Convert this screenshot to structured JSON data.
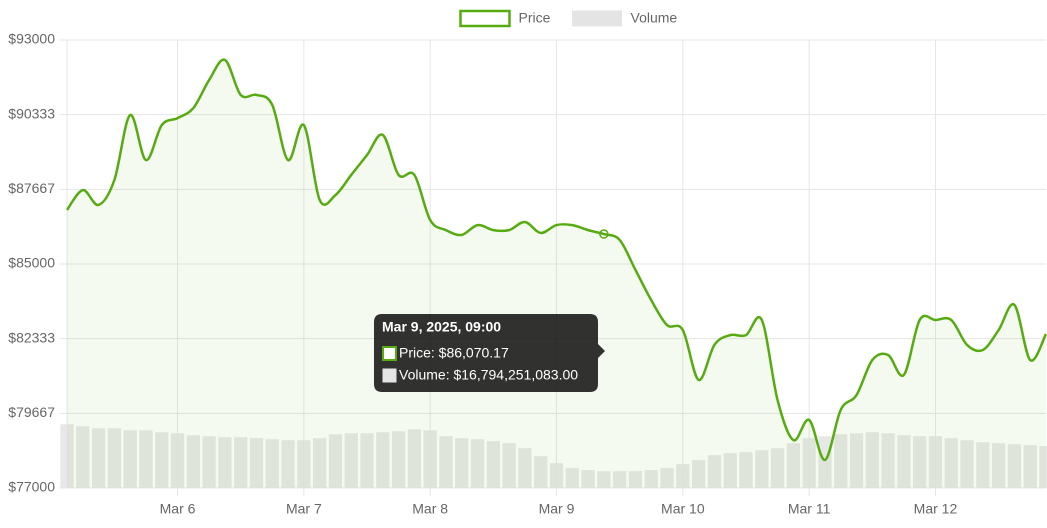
{
  "chart_data": {
    "type": "line",
    "legend": "top",
    "grid": true,
    "x": [
      "Mar 5, 2025, 03:00",
      "Mar 5, 2025, 06:00",
      "Mar 5, 2025, 09:00",
      "Mar 5, 2025, 12:00",
      "Mar 5, 2025, 15:00",
      "Mar 5, 2025, 18:00",
      "Mar 5, 2025, 21:00",
      "Mar 6, 2025, 00:00",
      "Mar 6, 2025, 03:00",
      "Mar 6, 2025, 06:00",
      "Mar 6, 2025, 09:00",
      "Mar 6, 2025, 12:00",
      "Mar 6, 2025, 15:00",
      "Mar 6, 2025, 18:00",
      "Mar 6, 2025, 21:00",
      "Mar 7, 2025, 00:00",
      "Mar 7, 2025, 03:00",
      "Mar 7, 2025, 06:00",
      "Mar 7, 2025, 09:00",
      "Mar 7, 2025, 12:00",
      "Mar 7, 2025, 15:00",
      "Mar 7, 2025, 18:00",
      "Mar 7, 2025, 21:00",
      "Mar 8, 2025, 00:00",
      "Mar 8, 2025, 03:00",
      "Mar 8, 2025, 06:00",
      "Mar 8, 2025, 09:00",
      "Mar 8, 2025, 12:00",
      "Mar 8, 2025, 15:00",
      "Mar 8, 2025, 18:00",
      "Mar 8, 2025, 21:00",
      "Mar 9, 2025, 00:00",
      "Mar 9, 2025, 03:00",
      "Mar 9, 2025, 06:00",
      "Mar 9, 2025, 09:00",
      "Mar 9, 2025, 12:00",
      "Mar 9, 2025, 15:00",
      "Mar 9, 2025, 18:00",
      "Mar 9, 2025, 21:00",
      "Mar 10, 2025, 00:00",
      "Mar 10, 2025, 03:00",
      "Mar 10, 2025, 06:00",
      "Mar 10, 2025, 09:00",
      "Mar 10, 2025, 12:00",
      "Mar 10, 2025, 15:00",
      "Mar 10, 2025, 18:00",
      "Mar 10, 2025, 21:00",
      "Mar 11, 2025, 00:00",
      "Mar 11, 2025, 03:00",
      "Mar 11, 2025, 06:00",
      "Mar 11, 2025, 09:00",
      "Mar 11, 2025, 12:00",
      "Mar 11, 2025, 15:00",
      "Mar 11, 2025, 18:00",
      "Mar 11, 2025, 21:00",
      "Mar 12, 2025, 00:00",
      "Mar 12, 2025, 03:00",
      "Mar 12, 2025, 06:00",
      "Mar 12, 2025, 09:00",
      "Mar 12, 2025, 12:00",
      "Mar 12, 2025, 15:00",
      "Mar 12, 2025, 18:00",
      "Mar 12, 2025, 21:00"
    ],
    "xlim": [
      "Mar 5, 2025, 03:00",
      "Mar 12, 2025, 21:00"
    ],
    "xticks": [
      {
        "value": "Mar 6, 2025, 00:00",
        "label": "Mar 6"
      },
      {
        "value": "Mar 7, 2025, 00:00",
        "label": "Mar 7"
      },
      {
        "value": "Mar 8, 2025, 00:00",
        "label": "Mar 8"
      },
      {
        "value": "Mar 9, 2025, 00:00",
        "label": "Mar 9"
      },
      {
        "value": "Mar 10, 2025, 00:00",
        "label": "Mar 10"
      },
      {
        "value": "Mar 11, 2025, 00:00",
        "label": "Mar 11"
      },
      {
        "value": "Mar 12, 2025, 00:00",
        "label": "Mar 12"
      }
    ],
    "ylim": [
      77000,
      93000
    ],
    "yticks": [
      {
        "value": 77000,
        "label": "$77000"
      },
      {
        "value": 79667,
        "label": "$79667"
      },
      {
        "value": 82333,
        "label": "$82333"
      },
      {
        "value": 85000,
        "label": "$85000"
      },
      {
        "value": 87667,
        "label": "$87667"
      },
      {
        "value": 90333,
        "label": "$90333"
      },
      {
        "value": 93000,
        "label": "$93000"
      }
    ],
    "y2lim": [
      0,
      450000000000
    ],
    "series": [
      {
        "name": "Price",
        "color": "#56ab11",
        "values": [
          86930,
          87640,
          87110,
          88000,
          90320,
          88710,
          89960,
          90210,
          90570,
          91570,
          92290,
          91040,
          91040,
          90680,
          88710,
          89960,
          87290,
          87460,
          88180,
          88890,
          89610,
          88180,
          88180,
          86570,
          86210,
          86040,
          86390,
          86210,
          86210,
          86500,
          86110,
          86390,
          86390,
          86210,
          86070.17,
          85860,
          84790,
          83710,
          82820,
          82640,
          80860,
          82110,
          82460,
          82460,
          83000,
          80140,
          78710,
          79430,
          78000,
          79790,
          80320,
          81570,
          81750,
          81040,
          83000,
          83000,
          83000,
          82110,
          81930,
          82640,
          83540,
          81570,
          82500
        ]
      },
      {
        "name": "Volume",
        "color": "#e4e4e4",
        "axis": "y2",
        "values": [
          64000000000,
          62000000000,
          60000000000,
          60000000000,
          58000000000,
          58000000000,
          56000000000,
          55000000000,
          53000000000,
          52000000000,
          51000000000,
          51000000000,
          50000000000,
          49000000000,
          48000000000,
          48000000000,
          50000000000,
          54000000000,
          55000000000,
          55000000000,
          56000000000,
          57000000000,
          59000000000,
          58000000000,
          52000000000,
          50000000000,
          49000000000,
          47000000000,
          45000000000,
          40000000000,
          32000000000,
          25000000000,
          20000000000,
          18000000000,
          16794251083,
          17000000000,
          17000000000,
          18000000000,
          20000000000,
          24000000000,
          28000000000,
          33000000000,
          35000000000,
          36000000000,
          38000000000,
          40000000000,
          45000000000,
          50000000000,
          52000000000,
          54000000000,
          55000000000,
          56000000000,
          55000000000,
          53000000000,
          52000000000,
          52000000000,
          50000000000,
          48000000000,
          46000000000,
          45000000000,
          44000000000,
          43000000000,
          42000000000
        ]
      }
    ],
    "tooltip": {
      "title": "Mar 9, 2025, 09:00",
      "lines": [
        "Price: $86,070.17",
        "Volume: $16,794,251,083.00"
      ]
    }
  }
}
